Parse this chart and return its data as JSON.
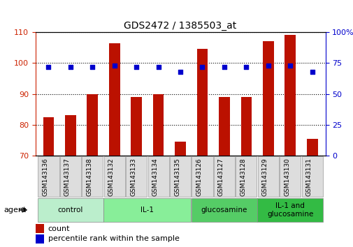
{
  "title": "GDS2472 / 1385503_at",
  "samples": [
    "GSM143136",
    "GSM143137",
    "GSM143138",
    "GSM143132",
    "GSM143133",
    "GSM143134",
    "GSM143135",
    "GSM143126",
    "GSM143127",
    "GSM143128",
    "GSM143129",
    "GSM143130",
    "GSM143131"
  ],
  "counts": [
    82.5,
    83.0,
    90.0,
    106.5,
    89.0,
    90.0,
    74.5,
    104.5,
    89.0,
    89.0,
    107.0,
    109.0,
    75.5
  ],
  "percentiles": [
    72,
    72,
    72,
    73,
    72,
    72,
    68,
    72,
    72,
    72,
    73,
    73,
    68
  ],
  "groups": [
    {
      "label": "control",
      "start": 0,
      "end": 3
    },
    {
      "label": "IL-1",
      "start": 3,
      "end": 7
    },
    {
      "label": "glucosamine",
      "start": 7,
      "end": 10
    },
    {
      "label": "IL-1 and\nglucosamine",
      "start": 10,
      "end": 13
    }
  ],
  "group_colors": [
    "#BBEECC",
    "#88EE99",
    "#55CC66",
    "#33BB44"
  ],
  "ylim_left": [
    70,
    110
  ],
  "ylim_right": [
    0,
    100
  ],
  "bar_color": "#BB1100",
  "dot_color": "#0000CC",
  "bar_width": 0.5,
  "xlabel_fontsize": 6.5,
  "title_fontsize": 10,
  "tick_fontsize": 8,
  "legend_label_count": "count",
  "legend_label_pct": "percentile rank within the sample",
  "agent_label": "agent",
  "left_tick_color": "#CC2200",
  "right_tick_color": "#0000CC"
}
